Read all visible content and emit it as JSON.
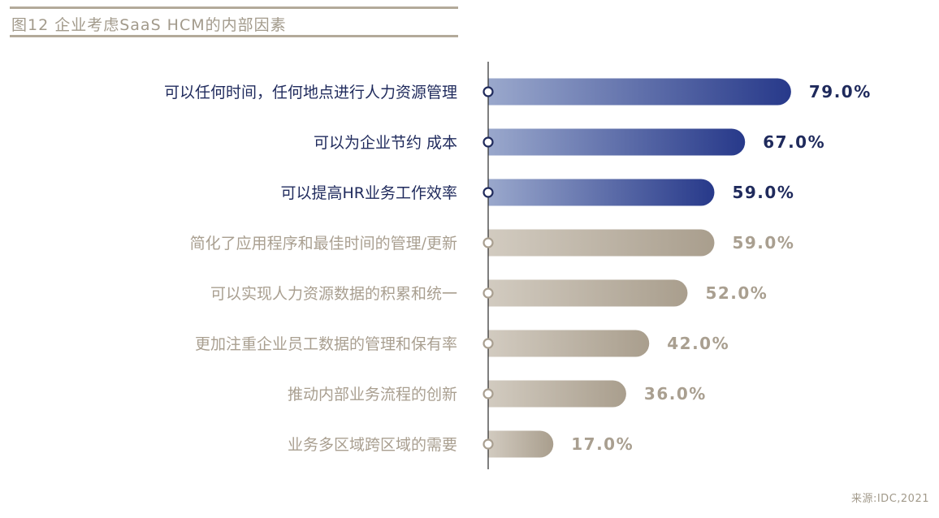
{
  "title": "图12 企业考虑SaaS HCM的内部因素",
  "source": "来源:IDC,2021",
  "colors": {
    "highlight_start": "#9aa8cc",
    "highlight_end": "#27398a",
    "highlight_text": "#1f2a5c",
    "muted_start": "#d2cbc0",
    "muted_end": "#a99e8d",
    "muted_text": "#a99f90",
    "axis": "#2a2a2a",
    "title_rule": "#b3aa9a"
  },
  "chart_data": {
    "type": "bar",
    "orientation": "horizontal",
    "categories": [
      "可以任何时间，任何地点进行人力资源管理",
      "可以为企业节约 成本",
      "可以提高HR业务工作效率",
      "简化了应用程序和最佳时间的管理/更新",
      "可以实现人力资源数据的积累和统一",
      "更加注重企业员工数据的管理和保有率",
      "推动内部业务流程的创新",
      "业务多区域跨区域的需要"
    ],
    "values": [
      79.0,
      67.0,
      59.0,
      59.0,
      52.0,
      42.0,
      36.0,
      17.0
    ],
    "value_labels": [
      "79.0%",
      "67.0%",
      "59.0%",
      "59.0%",
      "52.0%",
      "42.0%",
      "36.0%",
      "17.0%"
    ],
    "highlighted": [
      true,
      true,
      true,
      false,
      false,
      false,
      false,
      false
    ],
    "xlim": [
      0,
      100
    ],
    "grid": false,
    "legend": "none"
  }
}
